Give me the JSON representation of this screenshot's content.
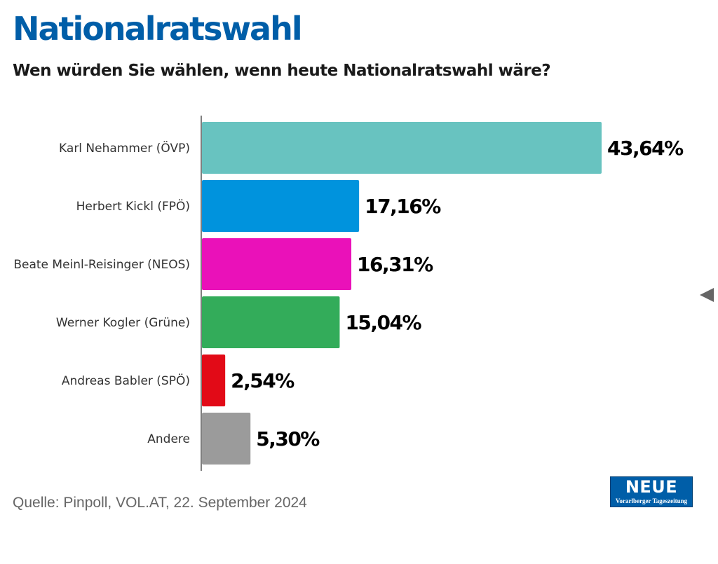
{
  "header": {
    "title": "Nationalratswahl",
    "subtitle": "Wen würden Sie wählen, wenn heute Nationalratswahl wäre?"
  },
  "chart_data": {
    "type": "bar",
    "orientation": "horizontal",
    "categories": [
      "Karl Nehammer (ÖVP)",
      "Herbert Kickl (FPÖ)",
      "Beate Meinl-Reisinger (NEOS)",
      "Werner Kogler (Grüne)",
      "Andreas Babler (SPÖ)",
      "Andere"
    ],
    "values": [
      43.64,
      17.16,
      16.31,
      15.04,
      2.54,
      5.3
    ],
    "value_labels": [
      "43,64%",
      "17,16%",
      "16,31%",
      "15,04%",
      "2,54%",
      "5,30%"
    ],
    "colors": [
      "#68c3c0",
      "#0093dd",
      "#ea11b9",
      "#33ac5a",
      "#e20a17",
      "#9b9b9b"
    ],
    "xlim": [
      0,
      45
    ],
    "grid": false,
    "legend": "none"
  },
  "footer": {
    "source": "Quelle: Pinpoll, VOL.AT, 22. September 2024"
  },
  "logo": {
    "word": "NEUE",
    "tagline": "Vorarlberger Tageszeitung"
  },
  "icons": {
    "nav": "arrow-left-icon"
  }
}
